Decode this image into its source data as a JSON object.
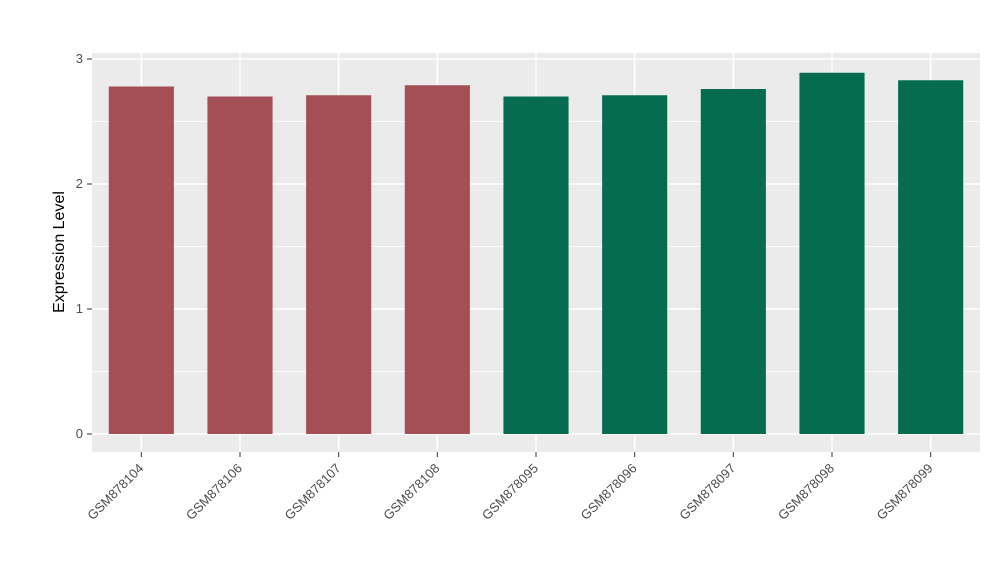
{
  "chart_data": {
    "type": "bar",
    "title": "",
    "ylabel": "Expression Level",
    "xlabel": "",
    "categories": [
      "GSM878104",
      "GSM878106",
      "GSM878107",
      "GSM878108",
      "GSM878095",
      "GSM878096",
      "GSM878097",
      "GSM878098",
      "GSM878099"
    ],
    "values": [
      2.78,
      2.7,
      2.71,
      2.79,
      2.7,
      2.71,
      2.76,
      2.89,
      2.83
    ],
    "bar_colors": [
      "#A44E56",
      "#A44E56",
      "#A44E56",
      "#A44E56",
      "#076C4F",
      "#076C4F",
      "#076C4F",
      "#076C4F",
      "#076C4F"
    ],
    "group_colors": {
      "left_group": "#A44E56",
      "right_group": "#076C4F"
    },
    "ylim": [
      0,
      3
    ],
    "yticks": [
      0,
      1,
      2,
      3
    ],
    "minor_yticks": [
      0.5,
      1.5,
      2.5
    ],
    "grid": true,
    "legend": "none",
    "panel_background": "#EBEBEB",
    "grid_color": "#FFFFFF",
    "tick_color": "#333333",
    "tick_label_color": "#4D4D4D",
    "axis_title_color": "#000000",
    "background": "#FFFFFF"
  }
}
